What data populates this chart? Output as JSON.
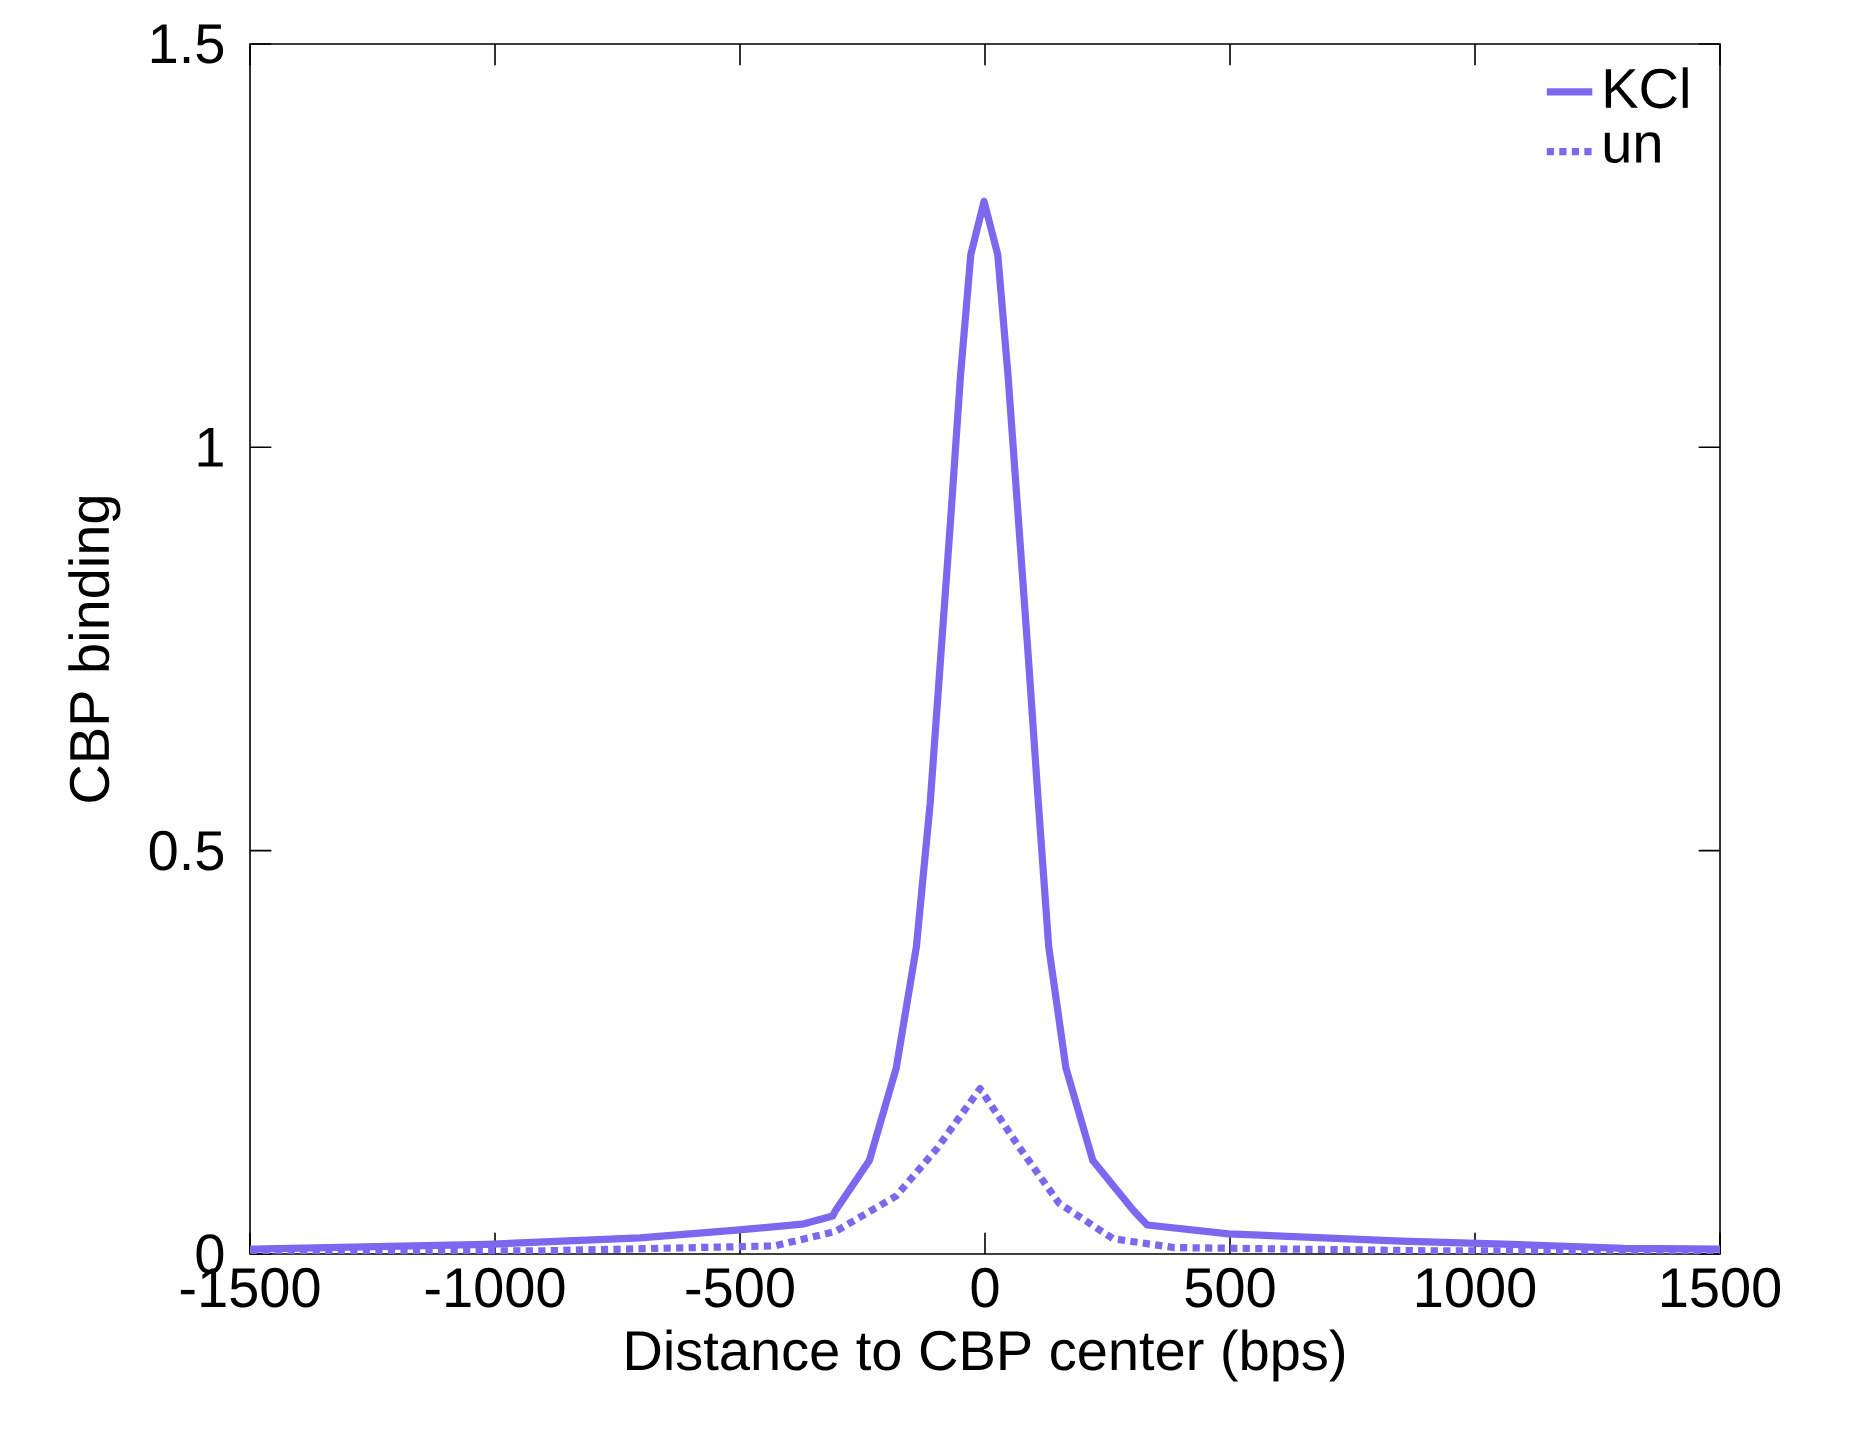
{
  "chart_data": {
    "type": "line",
    "xlabel": "Distance to CBP center (bps)",
    "ylabel": "CBP binding",
    "xlim": [
      -1500,
      1500
    ],
    "ylim": [
      0,
      1.5
    ],
    "xticks": [
      -1500,
      -1000,
      -500,
      0,
      500,
      1000,
      1500
    ],
    "yticks": [
      0,
      0.5,
      1,
      1.5
    ],
    "legend": "top right",
    "grid": false,
    "marker": "none",
    "series": [
      {
        "name": "KCl",
        "color": "#7b68ee",
        "line_style": "solid",
        "x": [
          -1500,
          -1016,
          -704,
          -501,
          -373,
          -311,
          -305,
          -236,
          -181,
          -140,
          -112,
          -91,
          -70,
          -50,
          -29,
          -2,
          26,
          47,
          68,
          89,
          109,
          130,
          165,
          220,
          303,
          331,
          497,
          849,
          1076,
          1303,
          1500
        ],
        "values": [
          0.006,
          0.012,
          0.02,
          0.03,
          0.037,
          0.047,
          0.054,
          0.116,
          0.231,
          0.381,
          0.558,
          0.735,
          0.912,
          1.089,
          1.239,
          1.305,
          1.239,
          1.089,
          0.912,
          0.735,
          0.558,
          0.381,
          0.231,
          0.116,
          0.054,
          0.036,
          0.025,
          0.016,
          0.012,
          0.007,
          0.006
        ]
      },
      {
        "name": "un",
        "color": "#7b68ee",
        "line_style": "dotted",
        "x": [
          -1500,
          -900,
          -430,
          -305,
          -181,
          -99,
          -10,
          68,
          151,
          261,
          385,
          900,
          1500
        ],
        "values": [
          0.003,
          0.004,
          0.01,
          0.028,
          0.072,
          0.13,
          0.205,
          0.134,
          0.063,
          0.019,
          0.008,
          0.004,
          0.003
        ]
      }
    ]
  }
}
